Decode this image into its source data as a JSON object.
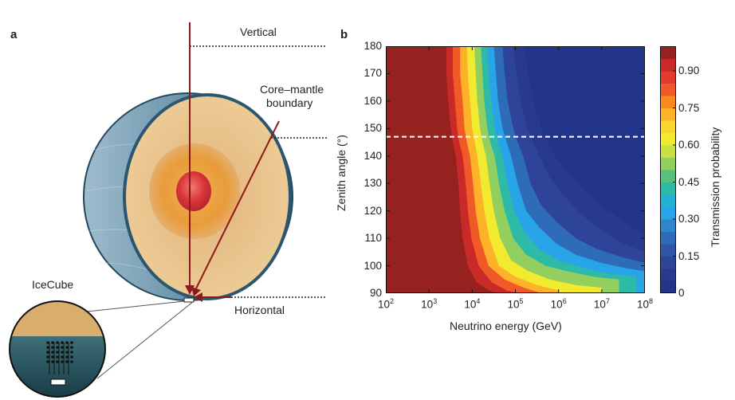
{
  "panel_a": {
    "label": "a",
    "annotations": {
      "vertical": "Vertical",
      "core_mantle_1": "Core–mantle",
      "core_mantle_2": "boundary",
      "horizontal": "Horizontal",
      "icecube": "IceCube"
    },
    "colors": {
      "arrow": "#8e1a1a",
      "crust": "#e7c48f",
      "outer_core": "#e99a36",
      "inner_core": "#d8343a",
      "ocean": "#3b6a87"
    }
  },
  "panel_b": {
    "label": "b"
  },
  "chart_data": {
    "type": "heatmap",
    "xlabel": "Neutrino energy (GeV)",
    "ylabel": "Zenith angle (°)",
    "colorbar_label": "Transmission probability",
    "x_scale": "log",
    "xlim": [
      100,
      100000000
    ],
    "ylim": [
      90,
      180
    ],
    "x_ticks": [
      {
        "base": "10",
        "exp": "2"
      },
      {
        "base": "10",
        "exp": "3"
      },
      {
        "base": "10",
        "exp": "4"
      },
      {
        "base": "10",
        "exp": "5"
      },
      {
        "base": "10",
        "exp": "6"
      },
      {
        "base": "10",
        "exp": "7"
      },
      {
        "base": "10",
        "exp": "8"
      }
    ],
    "y_ticks": [
      "90",
      "100",
      "110",
      "120",
      "130",
      "140",
      "150",
      "160",
      "170",
      "180"
    ],
    "colorbar_ticks": [
      "0",
      "0.15",
      "0.30",
      "0.45",
      "0.60",
      "0.75",
      "0.90"
    ],
    "colorbar_range": [
      0,
      1
    ],
    "core_mantle_boundary_zenith": 147,
    "contour_levels": [
      {
        "level": 0.95,
        "color": "#962220"
      },
      {
        "level": 0.9,
        "color": "#c92a27"
      },
      {
        "level": 0.85,
        "color": "#e23a2c"
      },
      {
        "level": 0.8,
        "color": "#f05a28"
      },
      {
        "level": 0.75,
        "color": "#f8891f"
      },
      {
        "level": 0.7,
        "color": "#fdb22a"
      },
      {
        "level": 0.65,
        "color": "#fbd62e"
      },
      {
        "level": 0.6,
        "color": "#f2ea2f"
      },
      {
        "level": 0.55,
        "color": "#c9e045"
      },
      {
        "level": 0.5,
        "color": "#93cf5e"
      },
      {
        "level": 0.45,
        "color": "#57c17c"
      },
      {
        "level": 0.4,
        "color": "#2dbaa6"
      },
      {
        "level": 0.35,
        "color": "#22b1d5"
      },
      {
        "level": 0.3,
        "color": "#28a5e8"
      },
      {
        "level": 0.25,
        "color": "#2e86cf"
      },
      {
        "level": 0.2,
        "color": "#2f6cb8"
      },
      {
        "level": 0.15,
        "color": "#2f55a6"
      },
      {
        "level": 0.1,
        "color": "#2d4499"
      },
      {
        "level": 0.05,
        "color": "#2a3990"
      },
      {
        "level": 0.0,
        "color": "#23348b"
      }
    ],
    "contours": [
      {
        "level": 0.95,
        "points": [
          [
            3.4,
            180
          ],
          [
            3.4,
            170
          ],
          [
            3.45,
            160
          ],
          [
            3.5,
            150
          ],
          [
            3.55,
            145
          ],
          [
            3.62,
            140
          ],
          [
            3.68,
            130
          ],
          [
            3.72,
            120
          ],
          [
            3.78,
            110
          ],
          [
            3.9,
            100
          ],
          [
            4.1,
            94
          ],
          [
            4.4,
            91
          ],
          [
            4.6,
            90
          ]
        ]
      },
      {
        "level": 0.9,
        "points": [
          [
            3.55,
            180
          ],
          [
            3.55,
            170
          ],
          [
            3.6,
            160
          ],
          [
            3.65,
            150
          ],
          [
            3.7,
            145
          ],
          [
            3.78,
            140
          ],
          [
            3.85,
            130
          ],
          [
            3.9,
            120
          ],
          [
            3.98,
            110
          ],
          [
            4.15,
            100
          ],
          [
            4.45,
            94
          ],
          [
            4.8,
            91
          ],
          [
            5.1,
            90
          ]
        ]
      },
      {
        "level": 0.8,
        "points": [
          [
            3.72,
            180
          ],
          [
            3.72,
            170
          ],
          [
            3.78,
            160
          ],
          [
            3.82,
            150
          ],
          [
            3.88,
            145
          ],
          [
            3.95,
            140
          ],
          [
            4.02,
            130
          ],
          [
            4.08,
            120
          ],
          [
            4.18,
            110
          ],
          [
            4.38,
            100
          ],
          [
            4.75,
            95
          ],
          [
            5.2,
            92
          ],
          [
            5.6,
            90
          ]
        ]
      },
      {
        "level": 0.7,
        "points": [
          [
            3.88,
            180
          ],
          [
            3.9,
            170
          ],
          [
            3.95,
            160
          ],
          [
            4.0,
            150
          ],
          [
            4.06,
            145
          ],
          [
            4.12,
            140
          ],
          [
            4.2,
            130
          ],
          [
            4.28,
            120
          ],
          [
            4.4,
            110
          ],
          [
            4.62,
            100
          ],
          [
            5.0,
            96
          ],
          [
            5.5,
            93
          ],
          [
            6.0,
            91
          ]
        ]
      },
      {
        "level": 0.6,
        "points": [
          [
            4.05,
            180
          ],
          [
            4.08,
            170
          ],
          [
            4.12,
            160
          ],
          [
            4.18,
            150
          ],
          [
            4.24,
            145
          ],
          [
            4.32,
            140
          ],
          [
            4.4,
            130
          ],
          [
            4.5,
            120
          ],
          [
            4.65,
            110
          ],
          [
            4.9,
            102
          ],
          [
            5.3,
            98
          ],
          [
            5.8,
            95
          ],
          [
            6.4,
            93
          ],
          [
            7.0,
            92
          ]
        ]
      },
      {
        "level": 0.5,
        "points": [
          [
            4.2,
            180
          ],
          [
            4.24,
            170
          ],
          [
            4.28,
            160
          ],
          [
            4.35,
            150
          ],
          [
            4.42,
            145
          ],
          [
            4.52,
            140
          ],
          [
            4.62,
            130
          ],
          [
            4.75,
            120
          ],
          [
            4.95,
            110
          ],
          [
            5.25,
            104
          ],
          [
            5.7,
            100
          ],
          [
            6.2,
            98
          ],
          [
            6.8,
            96
          ],
          [
            7.4,
            95
          ]
        ]
      },
      {
        "level": 0.4,
        "points": [
          [
            4.35,
            180
          ],
          [
            4.38,
            170
          ],
          [
            4.44,
            160
          ],
          [
            4.52,
            150
          ],
          [
            4.6,
            145
          ],
          [
            4.7,
            140
          ],
          [
            4.82,
            130
          ],
          [
            4.98,
            120
          ],
          [
            5.22,
            112
          ],
          [
            5.55,
            106
          ],
          [
            6.0,
            102
          ],
          [
            6.6,
            99
          ],
          [
            7.2,
            97
          ],
          [
            7.8,
            96
          ]
        ]
      },
      {
        "level": 0.3,
        "points": [
          [
            4.5,
            180
          ],
          [
            4.55,
            170
          ],
          [
            4.6,
            160
          ],
          [
            4.7,
            150
          ],
          [
            4.8,
            145
          ],
          [
            4.9,
            140
          ],
          [
            5.05,
            130
          ],
          [
            5.25,
            120
          ],
          [
            5.55,
            114
          ],
          [
            5.95,
            108
          ],
          [
            6.4,
            104
          ],
          [
            7.0,
            101
          ],
          [
            7.6,
            99
          ],
          [
            8.0,
            98
          ]
        ]
      },
      {
        "level": 0.2,
        "points": [
          [
            4.7,
            180
          ],
          [
            4.75,
            170
          ],
          [
            4.82,
            160
          ],
          [
            4.95,
            150
          ],
          [
            5.05,
            145
          ],
          [
            5.18,
            140
          ],
          [
            5.35,
            130
          ],
          [
            5.6,
            122
          ],
          [
            5.95,
            116
          ],
          [
            6.4,
            110
          ],
          [
            6.9,
            106
          ],
          [
            7.5,
            103
          ],
          [
            8.0,
            101
          ]
        ]
      },
      {
        "level": 0.1,
        "points": [
          [
            4.95,
            180
          ],
          [
            5.02,
            170
          ],
          [
            5.12,
            160
          ],
          [
            5.28,
            150
          ],
          [
            5.4,
            145
          ],
          [
            5.55,
            140
          ],
          [
            5.8,
            132
          ],
          [
            6.1,
            126
          ],
          [
            6.5,
            119
          ],
          [
            7.0,
            113
          ],
          [
            7.5,
            108
          ],
          [
            8.0,
            105
          ]
        ]
      },
      {
        "level": 0.05,
        "points": [
          [
            5.2,
            180
          ],
          [
            5.3,
            170
          ],
          [
            5.42,
            160
          ],
          [
            5.6,
            150
          ],
          [
            5.75,
            145
          ],
          [
            5.92,
            140
          ],
          [
            6.2,
            134
          ],
          [
            6.55,
            128
          ],
          [
            7.0,
            122
          ],
          [
            7.5,
            116
          ],
          [
            8.0,
            111
          ]
        ]
      }
    ]
  }
}
